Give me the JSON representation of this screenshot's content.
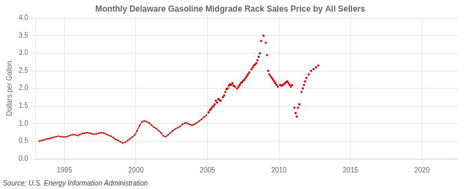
{
  "chart_data": {
    "type": "line",
    "title": "Monthly Delaware Gasoline Midgrade Rack Sales Price by All Sellers",
    "ylabel": "Dollars per Gallon",
    "annotation": "Source: U.S. Energy Information Administration",
    "xlim": [
      1993.0,
      2022.5
    ],
    "ylim": [
      0.0,
      4.0
    ],
    "xticks": [
      1995,
      2000,
      2005,
      2010,
      2015,
      2020
    ],
    "yticks": [
      {
        "value": 0.0,
        "label": "0.0"
      },
      0.5,
      {
        "value": 1.0,
        "label": "1.0"
      },
      1.5,
      {
        "value": 2.0,
        "label": "2.0"
      },
      2.5,
      {
        "value": 3.0,
        "label": "3.0"
      },
      3.5,
      {
        "value": 4.0,
        "label": "4.0"
      }
    ],
    "grid": true,
    "series": [
      {
        "type": "line",
        "color": "#cc0000",
        "marker": "square",
        "x": [
          1993.25,
          1993.42,
          1993.58,
          1993.75,
          1993.92,
          1994.08,
          1994.25,
          1994.42,
          1994.58,
          1994.75,
          1994.92,
          1995.08,
          1995.25,
          1995.42,
          1995.58,
          1995.75,
          1995.92,
          1996.08,
          1996.25,
          1996.42,
          1996.58,
          1996.75,
          1996.92,
          1997.08,
          1997.25,
          1997.42,
          1997.58,
          1997.75,
          1997.92,
          1998.08,
          1998.25,
          1998.42,
          1998.58,
          1998.75,
          1998.92,
          1999.08,
          1999.25,
          1999.42,
          1999.58,
          1999.75,
          1999.92,
          2000.08,
          2000.25,
          2000.42,
          2000.58,
          2000.75,
          2000.92,
          2001.08,
          2001.25,
          2001.42,
          2001.58,
          2001.75,
          2001.92,
          2002.08,
          2002.25,
          2002.42,
          2002.58,
          2002.75,
          2002.92,
          2003.08,
          2003.25,
          2003.42,
          2003.58,
          2003.75,
          2003.92,
          2004.08,
          2004.25,
          2004.42,
          2004.58,
          2004.75,
          2004.92
        ],
        "values": [
          0.5,
          0.52,
          0.54,
          0.56,
          0.57,
          0.59,
          0.61,
          0.63,
          0.64,
          0.63,
          0.62,
          0.62,
          0.64,
          0.67,
          0.69,
          0.68,
          0.66,
          0.69,
          0.72,
          0.73,
          0.74,
          0.73,
          0.71,
          0.7,
          0.71,
          0.73,
          0.74,
          0.73,
          0.7,
          0.67,
          0.64,
          0.6,
          0.55,
          0.52,
          0.48,
          0.45,
          0.47,
          0.52,
          0.57,
          0.62,
          0.68,
          0.8,
          0.94,
          1.05,
          1.08,
          1.05,
          1.02,
          0.96,
          0.9,
          0.86,
          0.8,
          0.74,
          0.65,
          0.63,
          0.68,
          0.74,
          0.8,
          0.85,
          0.88,
          0.92,
          0.98,
          1.02,
          1.01,
          0.98,
          0.95,
          0.98,
          1.02,
          1.07,
          1.12,
          1.18,
          1.24
        ]
      },
      {
        "type": "scatter",
        "color": "#cc0000",
        "marker": "square",
        "x": [
          2005.08,
          2005.17,
          2005.25,
          2005.33,
          2005.42,
          2005.5,
          2005.58,
          2005.67,
          2005.75,
          2005.83,
          2005.92,
          2006.08,
          2006.17,
          2006.25,
          2006.33,
          2006.42,
          2006.5,
          2006.58,
          2006.67,
          2006.75,
          2006.83,
          2006.92,
          2007.08,
          2007.17,
          2007.25,
          2007.33,
          2007.42,
          2007.5,
          2007.58,
          2007.67,
          2007.75,
          2007.83,
          2007.92,
          2008.08,
          2008.17,
          2008.25,
          2008.33,
          2008.42,
          2008.5,
          2008.58,
          2008.67,
          2008.75,
          2008.92,
          2009.08,
          2009.17,
          2009.25,
          2009.33,
          2009.42,
          2009.5,
          2009.58,
          2009.67,
          2009.75,
          2009.83,
          2009.92,
          2010.08,
          2010.17,
          2010.25,
          2010.33,
          2010.42,
          2010.5,
          2010.58,
          2010.67,
          2010.75,
          2010.83,
          2010.92,
          2011.08,
          2011.17,
          2011.25,
          2011.33,
          2011.42,
          2011.58,
          2011.67,
          2011.75,
          2011.83,
          2011.92,
          2012.08,
          2012.25,
          2012.42,
          2012.58,
          2012.75
        ],
        "values": [
          1.32,
          1.38,
          1.42,
          1.47,
          1.5,
          1.55,
          1.65,
          1.6,
          1.7,
          1.68,
          1.65,
          1.75,
          1.8,
          1.9,
          1.98,
          2.0,
          2.08,
          2.12,
          2.1,
          2.15,
          2.08,
          2.05,
          2.0,
          2.05,
          2.1,
          2.15,
          2.18,
          2.22,
          2.25,
          2.3,
          2.35,
          2.4,
          2.45,
          2.55,
          2.6,
          2.65,
          2.68,
          2.72,
          2.8,
          2.9,
          3.0,
          3.35,
          3.5,
          3.3,
          2.95,
          2.5,
          2.4,
          2.35,
          2.3,
          2.25,
          2.2,
          2.15,
          2.1,
          2.05,
          2.1,
          2.08,
          2.1,
          2.12,
          2.15,
          2.18,
          2.2,
          2.15,
          2.1,
          2.05,
          2.1,
          1.45,
          1.3,
          1.2,
          1.45,
          1.55,
          1.9,
          2.0,
          2.1,
          2.2,
          2.3,
          2.4,
          2.5,
          2.55,
          2.6,
          2.65
        ]
      }
    ]
  }
}
